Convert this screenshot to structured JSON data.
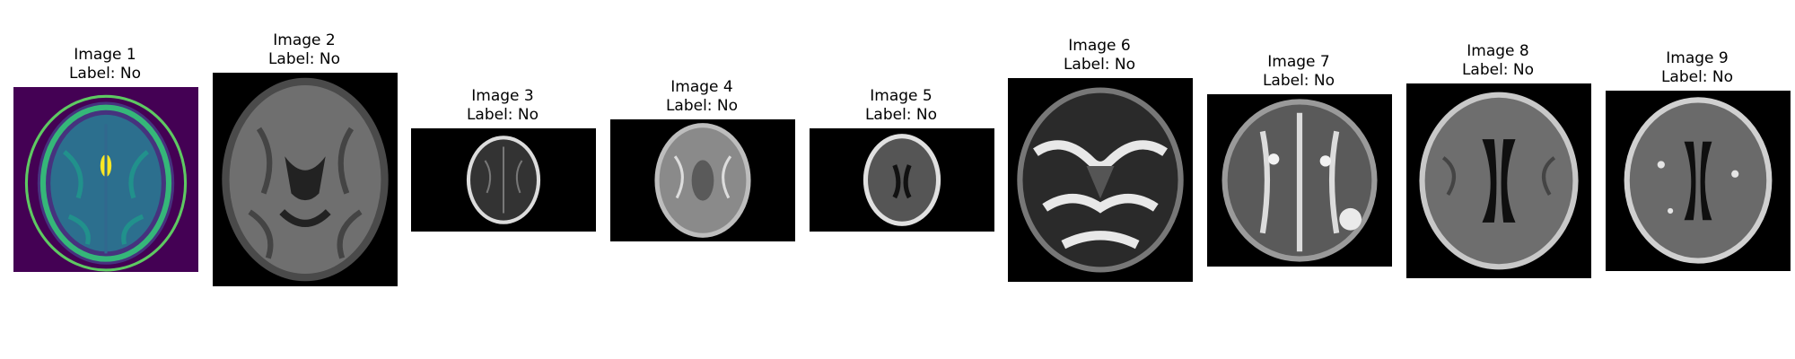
{
  "images": [
    {
      "title": "Image 1",
      "label": "Label: No"
    },
    {
      "title": "Image 2",
      "label": "Label: No"
    },
    {
      "title": "Image 3",
      "label": "Label: No"
    },
    {
      "title": "Image 4",
      "label": "Label: No"
    },
    {
      "title": "Image 5",
      "label": "Label: No"
    },
    {
      "title": "Image 6",
      "label": "Label: No"
    },
    {
      "title": "Image 7",
      "label": "Label: No"
    },
    {
      "title": "Image 8",
      "label": "Label: No"
    },
    {
      "title": "Image 9",
      "label": "Label: No"
    }
  ]
}
